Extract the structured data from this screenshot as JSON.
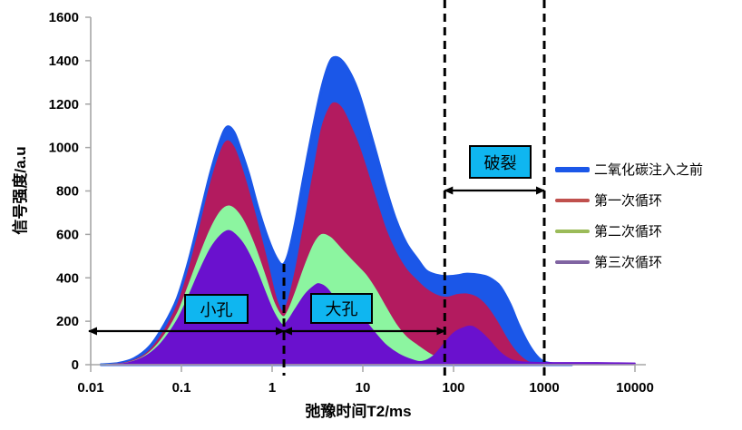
{
  "chart_data": {
    "type": "area",
    "title": "",
    "xlabel": "弛豫时间T2/ms",
    "ylabel": "信号强度/a.u",
    "x_scale": "log",
    "xlim": [
      0.01,
      10000
    ],
    "ylim": [
      0,
      1600
    ],
    "grid": false,
    "legend_position": "right",
    "x_tick_values": [
      0.01,
      0.1,
      1,
      10,
      100,
      1000,
      10000
    ],
    "x_tick_labels": [
      "0.01",
      "0.1",
      "1",
      "10",
      "100",
      "1000",
      "10000"
    ],
    "y_tick_values": [
      0,
      200,
      400,
      600,
      800,
      1000,
      1200,
      1400,
      1600
    ],
    "y_tick_labels": [
      "0",
      "200",
      "400",
      "600",
      "800",
      "1000",
      "1200",
      "1400",
      "1600"
    ],
    "series": [
      {
        "name": "二氧化碳注入之前",
        "fill_color": "#1b57e8",
        "legend_color": "#1b57e8",
        "line_width": 3,
        "swatch_height": 6,
        "points": [
          [
            0.013,
            0
          ],
          [
            0.02,
            6
          ],
          [
            0.03,
            28
          ],
          [
            0.045,
            85
          ],
          [
            0.065,
            185
          ],
          [
            0.09,
            305
          ],
          [
            0.12,
            475
          ],
          [
            0.16,
            685
          ],
          [
            0.21,
            885
          ],
          [
            0.27,
            1035
          ],
          [
            0.32,
            1095
          ],
          [
            0.38,
            1070
          ],
          [
            0.45,
            990
          ],
          [
            0.55,
            880
          ],
          [
            0.7,
            720
          ],
          [
            0.9,
            580
          ],
          [
            1.1,
            495
          ],
          [
            1.3,
            460
          ],
          [
            1.5,
            505
          ],
          [
            1.8,
            650
          ],
          [
            2.2,
            850
          ],
          [
            2.8,
            1080
          ],
          [
            3.5,
            1270
          ],
          [
            4.3,
            1390
          ],
          [
            5,
            1415
          ],
          [
            6,
            1395
          ],
          [
            7.5,
            1330
          ],
          [
            9,
            1250
          ],
          [
            11,
            1130
          ],
          [
            14,
            975
          ],
          [
            18,
            810
          ],
          [
            23,
            670
          ],
          [
            30,
            560
          ],
          [
            40,
            485
          ],
          [
            50,
            432
          ],
          [
            65,
            412
          ],
          [
            85,
            406
          ],
          [
            110,
            410
          ],
          [
            140,
            417
          ],
          [
            180,
            414
          ],
          [
            230,
            405
          ],
          [
            280,
            385
          ],
          [
            330,
            357
          ],
          [
            420,
            278
          ],
          [
            520,
            185
          ],
          [
            660,
            98
          ],
          [
            830,
            38
          ],
          [
            1000,
            12
          ],
          [
            1300,
            4
          ],
          [
            2000,
            0
          ]
        ]
      },
      {
        "name": "第一次循环",
        "fill_color": "#b31b5f",
        "legend_color": "#c0504d",
        "line_width": 1.5,
        "swatch_height": 4,
        "points": [
          [
            0.015,
            0
          ],
          [
            0.025,
            10
          ],
          [
            0.04,
            48
          ],
          [
            0.06,
            135
          ],
          [
            0.09,
            275
          ],
          [
            0.12,
            435
          ],
          [
            0.16,
            635
          ],
          [
            0.21,
            835
          ],
          [
            0.27,
            980
          ],
          [
            0.32,
            1030
          ],
          [
            0.38,
            1000
          ],
          [
            0.45,
            920
          ],
          [
            0.55,
            800
          ],
          [
            0.7,
            640
          ],
          [
            0.9,
            460
          ],
          [
            1.1,
            310
          ],
          [
            1.3,
            245
          ],
          [
            1.5,
            295
          ],
          [
            1.8,
            430
          ],
          [
            2.2,
            625
          ],
          [
            2.8,
            865
          ],
          [
            3.5,
            1085
          ],
          [
            4.3,
            1185
          ],
          [
            5,
            1205
          ],
          [
            6,
            1175
          ],
          [
            7.5,
            1090
          ],
          [
            9,
            1010
          ],
          [
            11,
            900
          ],
          [
            14,
            760
          ],
          [
            18,
            620
          ],
          [
            23,
            520
          ],
          [
            30,
            440
          ],
          [
            40,
            385
          ],
          [
            50,
            348
          ],
          [
            65,
            320
          ],
          [
            85,
            310
          ],
          [
            110,
            322
          ],
          [
            140,
            325
          ],
          [
            180,
            310
          ],
          [
            230,
            270
          ],
          [
            300,
            200
          ],
          [
            400,
            110
          ],
          [
            500,
            55
          ],
          [
            650,
            15
          ],
          [
            820,
            3
          ],
          [
            1000,
            0
          ]
        ]
      },
      {
        "name": "第二次循环",
        "fill_color": "#8cf5a0",
        "legend_color": "#9bbb59",
        "line_width": 1.5,
        "swatch_height": 4,
        "points": [
          [
            0.015,
            0
          ],
          [
            0.025,
            8
          ],
          [
            0.04,
            42
          ],
          [
            0.06,
            115
          ],
          [
            0.09,
            235
          ],
          [
            0.12,
            365
          ],
          [
            0.16,
            505
          ],
          [
            0.21,
            625
          ],
          [
            0.27,
            705
          ],
          [
            0.33,
            730
          ],
          [
            0.4,
            710
          ],
          [
            0.5,
            650
          ],
          [
            0.65,
            540
          ],
          [
            0.85,
            400
          ],
          [
            1.05,
            285
          ],
          [
            1.3,
            222
          ],
          [
            1.5,
            248
          ],
          [
            1.8,
            330
          ],
          [
            2.3,
            455
          ],
          [
            2.9,
            555
          ],
          [
            3.5,
            598
          ],
          [
            4.3,
            588
          ],
          [
            5,
            562
          ],
          [
            6,
            525
          ],
          [
            7.5,
            482
          ],
          [
            9,
            448
          ],
          [
            11,
            408
          ],
          [
            14,
            342
          ],
          [
            18,
            262
          ],
          [
            23,
            188
          ],
          [
            30,
            128
          ],
          [
            40,
            88
          ],
          [
            52,
            55
          ],
          [
            65,
            33
          ],
          [
            80,
            14
          ],
          [
            95,
            0
          ]
        ]
      },
      {
        "name": "第三次循环",
        "fill_color": "#6a11ce",
        "legend_color": "#8064a2",
        "line_width": 1.5,
        "swatch_height": 4,
        "points": [
          [
            0.015,
            0
          ],
          [
            0.025,
            7
          ],
          [
            0.04,
            38
          ],
          [
            0.06,
            100
          ],
          [
            0.09,
            205
          ],
          [
            0.12,
            315
          ],
          [
            0.16,
            435
          ],
          [
            0.21,
            535
          ],
          [
            0.27,
            595
          ],
          [
            0.33,
            617
          ],
          [
            0.4,
            596
          ],
          [
            0.5,
            545
          ],
          [
            0.65,
            450
          ],
          [
            0.85,
            328
          ],
          [
            1.05,
            238
          ],
          [
            1.3,
            183
          ],
          [
            1.5,
            204
          ],
          [
            1.8,
            255
          ],
          [
            2.3,
            322
          ],
          [
            2.9,
            362
          ],
          [
            3.3,
            372
          ],
          [
            4,
            352
          ],
          [
            5,
            300
          ],
          [
            6,
            262
          ],
          [
            7.5,
            232
          ],
          [
            9,
            215
          ],
          [
            11,
            193
          ],
          [
            14,
            140
          ],
          [
            18,
            90
          ],
          [
            25,
            48
          ],
          [
            35,
            22
          ],
          [
            45,
            14
          ],
          [
            60,
            40
          ],
          [
            80,
            100
          ],
          [
            100,
            145
          ],
          [
            130,
            170
          ],
          [
            160,
            176
          ],
          [
            200,
            150
          ],
          [
            250,
            110
          ],
          [
            320,
            60
          ],
          [
            420,
            25
          ],
          [
            550,
            13
          ],
          [
            800,
            10
          ],
          [
            1500,
            9
          ],
          [
            3000,
            9
          ],
          [
            6000,
            8
          ],
          [
            10000,
            7
          ]
        ]
      }
    ],
    "annotations": {
      "dashed_lines_ms": [
        1.35,
        80,
        1000
      ],
      "pore_labels": [
        {
          "label": "小孔",
          "range_ms": [
            0.01,
            1.35
          ]
        },
        {
          "label": "大孔",
          "range_ms": [
            1.35,
            80
          ]
        },
        {
          "label": "破裂",
          "range_ms": [
            80,
            1000
          ]
        }
      ],
      "label_box_color": "#0fb6f0"
    }
  }
}
